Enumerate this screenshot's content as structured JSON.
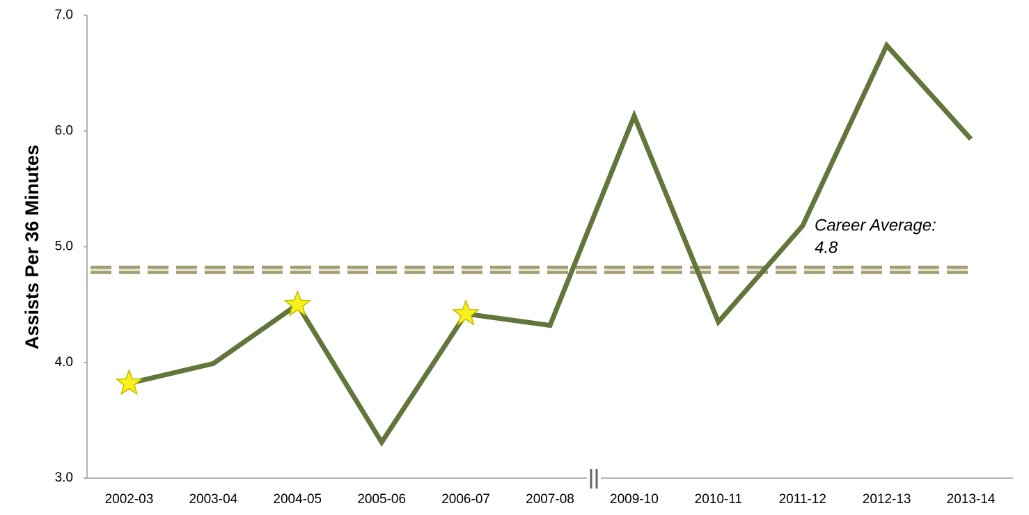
{
  "chart_data": {
    "type": "line",
    "y_label": "Assists Per 36 Minutes",
    "categories": [
      "2002-03",
      "2003-04",
      "2004-05",
      "2005-06",
      "2006-07",
      "2007-08",
      "2009-10",
      "2010-11",
      "2011-12",
      "2012-13",
      "2013-14"
    ],
    "series": [
      {
        "color": "#62753a",
        "values": [
          3.82,
          3.99,
          4.5,
          3.31,
          4.42,
          4.32,
          6.13,
          4.35,
          5.18,
          6.74,
          5.93
        ],
        "point_markers": [
          "star",
          null,
          "star",
          null,
          "star",
          null,
          null,
          null,
          null,
          null,
          null
        ]
      }
    ],
    "ylim": [
      3,
      7
    ],
    "yticks": [
      {
        "value": 3,
        "label": "3.0"
      },
      {
        "value": 4,
        "label": "4.0"
      },
      {
        "value": 5,
        "label": "5.0"
      },
      {
        "value": 6,
        "label": "6.0"
      },
      {
        "value": 7,
        "label": "7.0"
      }
    ],
    "reference_line": {
      "text": "Career Average:",
      "value": 4.8,
      "color": "#a39d74"
    },
    "grid": false
  }
}
